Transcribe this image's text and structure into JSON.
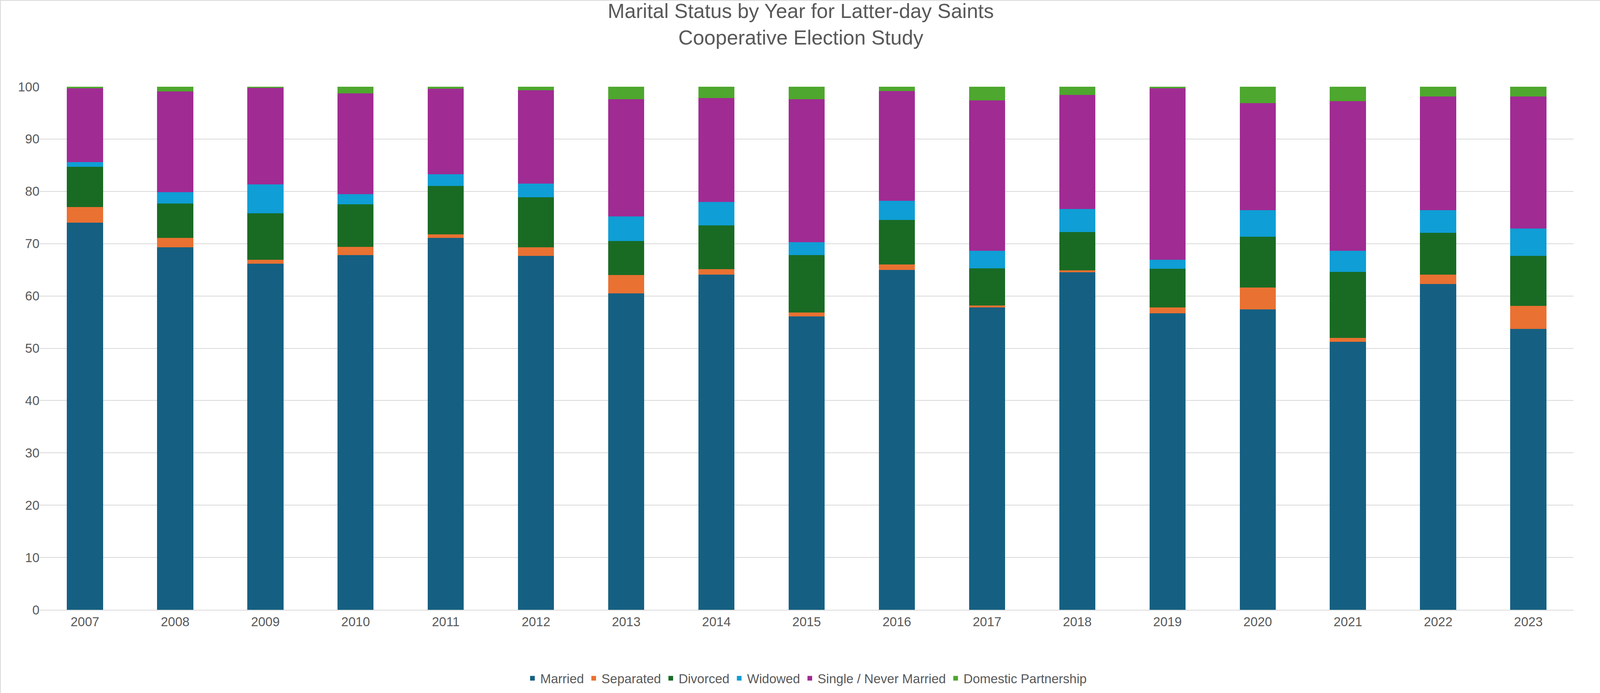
{
  "chart_data": {
    "type": "bar",
    "title": "Marital Status by Year for Latter-day Saints",
    "subtitle": "Cooperative Election Study",
    "stacked": true,
    "grid": true,
    "legend": "bottom",
    "categories": [
      "2007",
      "2008",
      "2009",
      "2010",
      "2011",
      "2012",
      "2013",
      "2014",
      "2015",
      "2016",
      "2017",
      "2018",
      "2019",
      "2020",
      "2021",
      "2022",
      "2023"
    ],
    "ylim": [
      0,
      100
    ],
    "yticks": [
      0,
      10,
      20,
      30,
      40,
      50,
      60,
      70,
      80,
      90,
      100
    ],
    "series": [
      {
        "name": "Married",
        "color": "#156082",
        "values": [
          74.0,
          69.3,
          66.2,
          67.8,
          71.1,
          67.7,
          60.5,
          64.1,
          56.1,
          65.0,
          57.8,
          64.5,
          56.7,
          57.4,
          51.2,
          62.3,
          53.7
        ]
      },
      {
        "name": "Separated",
        "color": "#E97132",
        "values": [
          3.0,
          1.8,
          0.7,
          1.6,
          0.7,
          1.6,
          3.5,
          1.0,
          0.7,
          1.0,
          0.4,
          0.4,
          1.1,
          4.2,
          0.8,
          1.8,
          4.4
        ]
      },
      {
        "name": "Divorced",
        "color": "#196B24",
        "values": [
          7.7,
          6.6,
          8.9,
          8.1,
          9.2,
          9.6,
          6.5,
          8.4,
          11.0,
          8.5,
          7.1,
          7.3,
          7.4,
          9.7,
          12.6,
          8.0,
          9.6
        ]
      },
      {
        "name": "Widowed",
        "color": "#0F9ED5",
        "values": [
          0.9,
          2.1,
          5.5,
          2.0,
          2.3,
          2.6,
          4.7,
          4.5,
          2.5,
          3.7,
          3.3,
          4.4,
          1.7,
          5.1,
          4.0,
          4.3,
          5.2
        ]
      },
      {
        "name": "Single / Never Married",
        "color": "#A02B93",
        "values": [
          14.1,
          19.3,
          18.5,
          19.2,
          16.3,
          17.8,
          22.4,
          19.8,
          27.3,
          21.0,
          28.8,
          21.8,
          32.8,
          20.5,
          28.6,
          21.7,
          25.2
        ]
      },
      {
        "name": "Domestic Partnership",
        "color": "#4EA72E",
        "values": [
          0.3,
          0.9,
          0.2,
          1.3,
          0.4,
          0.7,
          2.4,
          2.2,
          2.4,
          0.8,
          2.6,
          1.6,
          0.3,
          3.1,
          2.8,
          1.9,
          1.9
        ]
      }
    ]
  }
}
